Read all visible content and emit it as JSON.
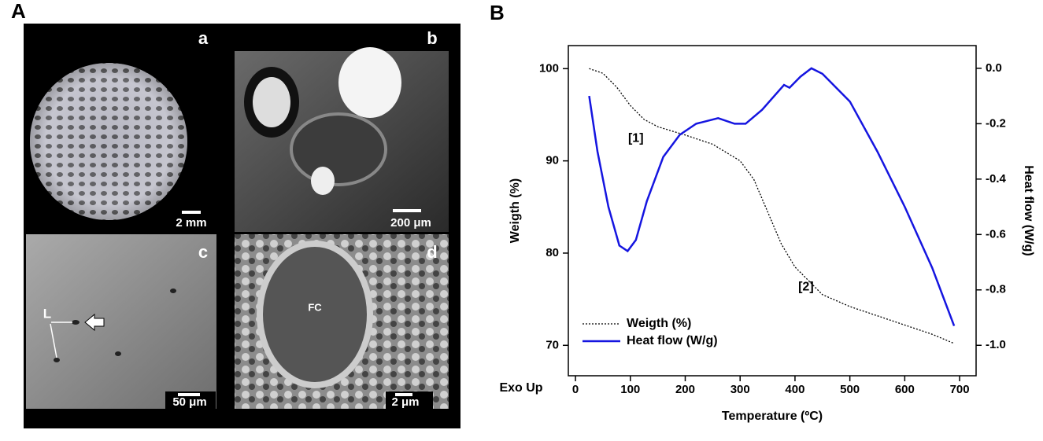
{
  "panel_labels": [
    "A",
    "B"
  ],
  "images": [
    {
      "label": "a",
      "scale": "2 mm"
    },
    {
      "label": "b",
      "scale": "200 μm"
    },
    {
      "label": "c",
      "scale": "50 μm",
      "marker": "L"
    },
    {
      "label": "d",
      "scale": "2 μm",
      "marker": "FC"
    }
  ],
  "chart_data": {
    "type": "line",
    "x_label": "Temperature (ºC)",
    "y_label": "Weigth (%)",
    "y2_label": "Heat flow (W/g)",
    "corner_text": "Exo Up",
    "annotations": [
      {
        "text": "[1]",
        "x": 110,
        "y": 92.4
      },
      {
        "text": "[2]",
        "x": 420,
        "y": 76.3
      }
    ],
    "xlim": [
      -13,
      730
    ],
    "xticks": [
      0,
      100,
      200,
      300,
      400,
      500,
      600,
      700
    ],
    "ylim": [
      66.7,
      102.5
    ],
    "yticks": [
      70,
      80,
      90,
      100
    ],
    "y2lim": [
      -1.11,
      0.082
    ],
    "y2ticks": [
      {
        "value": -1.0,
        "label": "-1.0"
      },
      {
        "value": -0.8,
        "label": "-0.8"
      },
      {
        "value": -0.6,
        "label": "-0.6"
      },
      {
        "value": -0.4,
        "label": "-0.4"
      },
      {
        "value": -0.2,
        "label": "-0.2"
      },
      {
        "value": 0.0,
        "label": "0.0"
      }
    ],
    "legend": "lower left",
    "series": [
      {
        "name": "Weigth (%)",
        "color": "#000000",
        "line_style": "dotted",
        "x": [
          25,
          50,
          75,
          100,
          125,
          150,
          200,
          250,
          300,
          325,
          350,
          375,
          400,
          450,
          500,
          550,
          600,
          650,
          690
        ],
        "values": [
          100,
          99.5,
          98,
          96,
          94.5,
          93.7,
          92.8,
          91.8,
          90,
          88,
          84.5,
          81,
          78.5,
          75.5,
          74.2,
          73.2,
          72.2,
          71.2,
          70.2
        ]
      },
      {
        "name": "Heat flow (W/g)",
        "color": "#1515e0",
        "line_style": "solid",
        "axis": "y2",
        "x": [
          25,
          40,
          60,
          80,
          95,
          110,
          130,
          160,
          190,
          220,
          260,
          290,
          310,
          340,
          380,
          390,
          410,
          430,
          450,
          500,
          550,
          600,
          650,
          690
        ],
        "values": [
          -0.1,
          -0.3,
          -0.5,
          -0.64,
          -0.66,
          -0.62,
          -0.48,
          -0.32,
          -0.24,
          -0.2,
          -0.18,
          -0.2,
          -0.2,
          -0.15,
          -0.06,
          -0.07,
          -0.03,
          0.0,
          -0.02,
          -0.12,
          -0.3,
          -0.5,
          -0.72,
          -0.93
        ]
      }
    ]
  }
}
